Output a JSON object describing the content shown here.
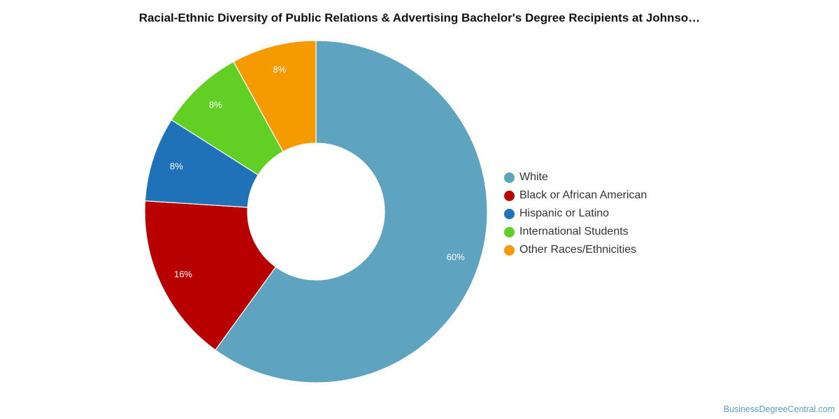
{
  "chart_data": {
    "type": "pie",
    "title": "Racial-Ethnic Diversity of Public Relations & Advertising Bachelor's Degree Recipients at Johnso…",
    "donut": true,
    "legend_position": "right",
    "series": [
      {
        "name": "White",
        "value": 60,
        "label": "60%",
        "color": "#5ea3c0"
      },
      {
        "name": "Black or African American",
        "value": 16,
        "label": "16%",
        "color": "#b80000"
      },
      {
        "name": "Hispanic or Latino",
        "value": 8,
        "label": "8%",
        "color": "#1f72b8"
      },
      {
        "name": "International Students",
        "value": 8,
        "label": "8%",
        "color": "#62cf24"
      },
      {
        "name": "Other Races/Ethnicities",
        "value": 8,
        "label": "8%",
        "color": "#f59a00"
      }
    ]
  },
  "watermark": "BusinessDegreeCentral.com"
}
